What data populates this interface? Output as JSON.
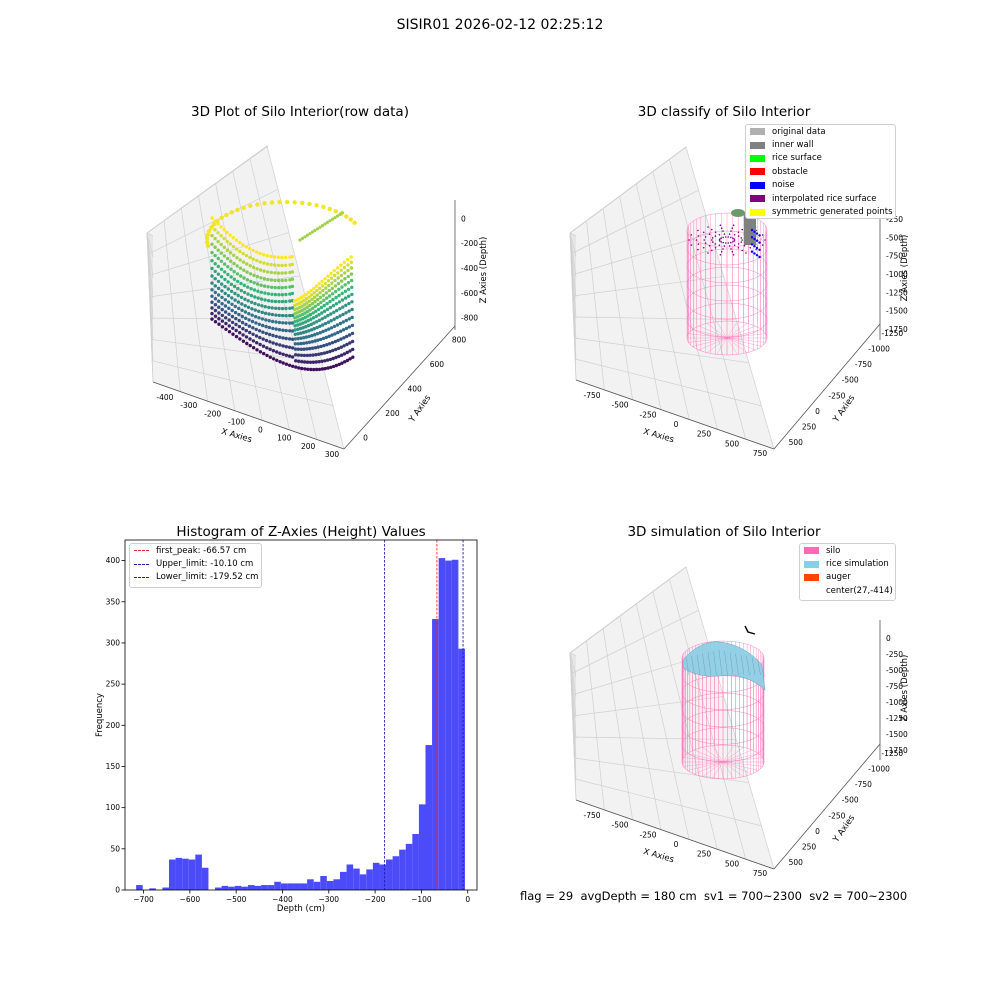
{
  "suptitle": "SISIR01 2026-02-12 02:25:12",
  "bottom_text": "flag = 29  avgDepth = 180 cm  sv1 = 700~2300  sv2 = 700~2300",
  "chart_data": [
    {
      "id": "raw",
      "type": "scatter3d",
      "title": "3D Plot of Silo Interior(row data)",
      "xlabel": "X Axies",
      "ylabel": "Y Axies",
      "zlabel": "Z Axies (Depth)",
      "x_ticks": [
        "-400",
        "-300",
        "-200",
        "-100",
        "0",
        "100",
        "200",
        "300"
      ],
      "y_ticks": [
        "0",
        "200",
        "400",
        "600",
        "800"
      ],
      "z_ticks": [
        "0",
        "-200",
        "-400",
        "-600",
        "-800"
      ],
      "xlim": [
        -450,
        310
      ],
      "ylim": [
        -100,
        950
      ],
      "zlim": [
        -950,
        50
      ],
      "colormap": [
        "#440154",
        "#31688e",
        "#35b779",
        "#fde725"
      ]
    },
    {
      "id": "classify",
      "type": "scatter3d",
      "title": "3D classify of Silo Interior",
      "xlabel": "X Axies",
      "ylabel": "Y Axies",
      "zlabel": "Z Axies (Depth)",
      "x_ticks": [
        "-750",
        "-500",
        "-250",
        "0",
        "250",
        "500",
        "750"
      ],
      "y_ticks": [
        "500",
        "250",
        "0",
        "-250",
        "-500",
        "-750",
        "-1000",
        "-1250"
      ],
      "z_ticks": [
        "-250",
        "-500",
        "-750",
        "-1000",
        "-1250",
        "-1500",
        "-1750"
      ],
      "legend_position": "top-right",
      "legend": [
        {
          "label": "original data",
          "color": "#b0b0b0"
        },
        {
          "label": "inner wall",
          "color": "#808080"
        },
        {
          "label": "rice surface",
          "color": "#00ff00"
        },
        {
          "label": "obstacle",
          "color": "#ff0000"
        },
        {
          "label": "noise",
          "color": "#0000ff"
        },
        {
          "label": "interpolated rice surface",
          "color": "#800080"
        },
        {
          "label": "symmetric generated points",
          "color": "#ffff00"
        }
      ]
    },
    {
      "id": "histogram",
      "type": "bar",
      "title": "Histogram of Z-Axies (Height) Values",
      "xlabel": "Depth (cm)",
      "ylabel": "Frequency",
      "xlim": [
        -740,
        20
      ],
      "ylim": [
        0,
        425
      ],
      "x_ticks": [
        -700,
        -600,
        -500,
        -400,
        -300,
        -200,
        -100,
        0
      ],
      "y_ticks": [
        0,
        50,
        100,
        150,
        200,
        250,
        300,
        350,
        400
      ],
      "bar_color": "#4b4bfa",
      "bin_width": 14.2,
      "bin_start": -716,
      "values": [
        6,
        0,
        2,
        0,
        3,
        37,
        39,
        38,
        37,
        43,
        27,
        0,
        3,
        5,
        4,
        5,
        4,
        6,
        5,
        6,
        6,
        10,
        8,
        8,
        8,
        8,
        13,
        10,
        17,
        11,
        13,
        22,
        31,
        26,
        19,
        25,
        33,
        31,
        37,
        41,
        49,
        56,
        68,
        104,
        176,
        329,
        403,
        400,
        401,
        293
      ],
      "lines": [
        {
          "label": "first_peak: -66.57 cm",
          "x": -66.57,
          "color": "#e0302f"
        },
        {
          "label": "Upper_limit: -10.10 cm",
          "x": -10.1,
          "color": "#1f1fb0"
        },
        {
          "label": "Lower_limit: -179.52 cm",
          "x": -179.52,
          "color": "#1f1fb0"
        }
      ],
      "legend_position": "top-left"
    },
    {
      "id": "simulation",
      "type": "surface3d",
      "title": "3D simulation of Silo Interior",
      "xlabel": "X Axies",
      "ylabel": "Y Axies",
      "zlabel": "Z Axies (Depth)",
      "x_ticks": [
        "-750",
        "-500",
        "-250",
        "0",
        "250",
        "500",
        "750"
      ],
      "y_ticks": [
        "500",
        "250",
        "0",
        "-250",
        "-500",
        "-750",
        "-1000",
        "-1250"
      ],
      "z_ticks": [
        "0",
        "-250",
        "-500",
        "-750",
        "-1000",
        "-1250",
        "-1500",
        "-1750"
      ],
      "legend_position": "top-right",
      "legend": [
        {
          "label": "silo",
          "color": "#ff69b4"
        },
        {
          "label": "rice simulation",
          "color": "#87ceeb"
        },
        {
          "label": "auger",
          "color": "#ff4500"
        },
        {
          "label": "center(27,-414)",
          "color": ""
        }
      ]
    }
  ]
}
